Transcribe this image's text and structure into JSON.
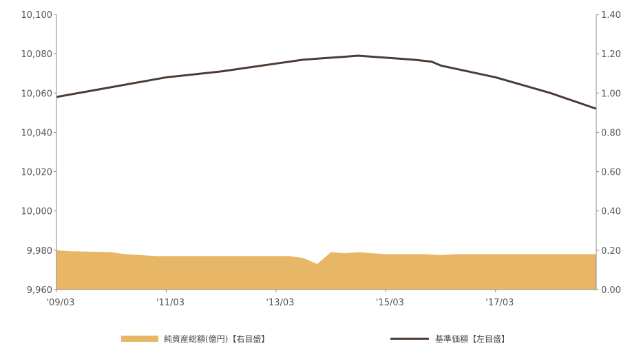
{
  "chart_data": {
    "type": "line+area",
    "colors": {
      "area": "#e7b666",
      "line": "#4a3b33",
      "axis": "#888888"
    },
    "x_start": "2009-03",
    "x_end": "2019-01",
    "x_ticks": [
      {
        "date": "2009-03",
        "label": "'09/03"
      },
      {
        "date": "2011-03",
        "label": "'11/03"
      },
      {
        "date": "2013-03",
        "label": "'13/03"
      },
      {
        "date": "2015-03",
        "label": "'15/03"
      },
      {
        "date": "2017-03",
        "label": "'17/03"
      }
    ],
    "y_left": {
      "lim": [
        9960,
        10100
      ],
      "ticks": [
        9960,
        9980,
        10000,
        10020,
        10040,
        10060,
        10080,
        10100
      ],
      "labels": [
        "9,960",
        "9,980",
        "10,000",
        "10,020",
        "10,040",
        "10,060",
        "10,080",
        "10,100"
      ]
    },
    "y_right": {
      "lim": [
        0,
        1.4
      ],
      "ticks": [
        0,
        0.2,
        0.4,
        0.6,
        0.8,
        1.0,
        1.2,
        1.4
      ],
      "labels": [
        "0.00",
        "0.20",
        "0.40",
        "0.60",
        "0.80",
        "1.00",
        "1.20",
        "1.40"
      ]
    },
    "series": [
      {
        "name": "純資産総額(億円)【右目盛】",
        "kind": "area",
        "axis": "right",
        "points": [
          [
            "2009-03",
            0.2
          ],
          [
            "2009-06",
            0.195
          ],
          [
            "2010-03",
            0.19
          ],
          [
            "2010-06",
            0.18
          ],
          [
            "2011-01",
            0.17
          ],
          [
            "2012-06",
            0.17
          ],
          [
            "2013-06",
            0.17
          ],
          [
            "2013-09",
            0.16
          ],
          [
            "2013-12",
            0.13
          ],
          [
            "2014-03",
            0.19
          ],
          [
            "2014-06",
            0.185
          ],
          [
            "2014-09",
            0.19
          ],
          [
            "2015-03",
            0.18
          ],
          [
            "2015-12",
            0.18
          ],
          [
            "2016-03",
            0.175
          ],
          [
            "2016-06",
            0.18
          ],
          [
            "2017-03",
            0.18
          ],
          [
            "2018-06",
            0.18
          ],
          [
            "2019-01",
            0.18
          ]
        ]
      },
      {
        "name": "基準価額【左目盛】",
        "kind": "line",
        "axis": "left",
        "points": [
          [
            "2009-03",
            10058
          ],
          [
            "2010-03",
            10063
          ],
          [
            "2011-03",
            10068
          ],
          [
            "2012-03",
            10071
          ],
          [
            "2013-03",
            10075
          ],
          [
            "2013-09",
            10077
          ],
          [
            "2014-03",
            10078
          ],
          [
            "2014-09",
            10079
          ],
          [
            "2015-03",
            10078
          ],
          [
            "2015-09",
            10077
          ],
          [
            "2016-01",
            10076
          ],
          [
            "2016-03",
            10074
          ],
          [
            "2017-03",
            10068
          ],
          [
            "2018-03",
            10060
          ],
          [
            "2019-01",
            10052
          ]
        ]
      }
    ],
    "legend_position": "bottom"
  }
}
